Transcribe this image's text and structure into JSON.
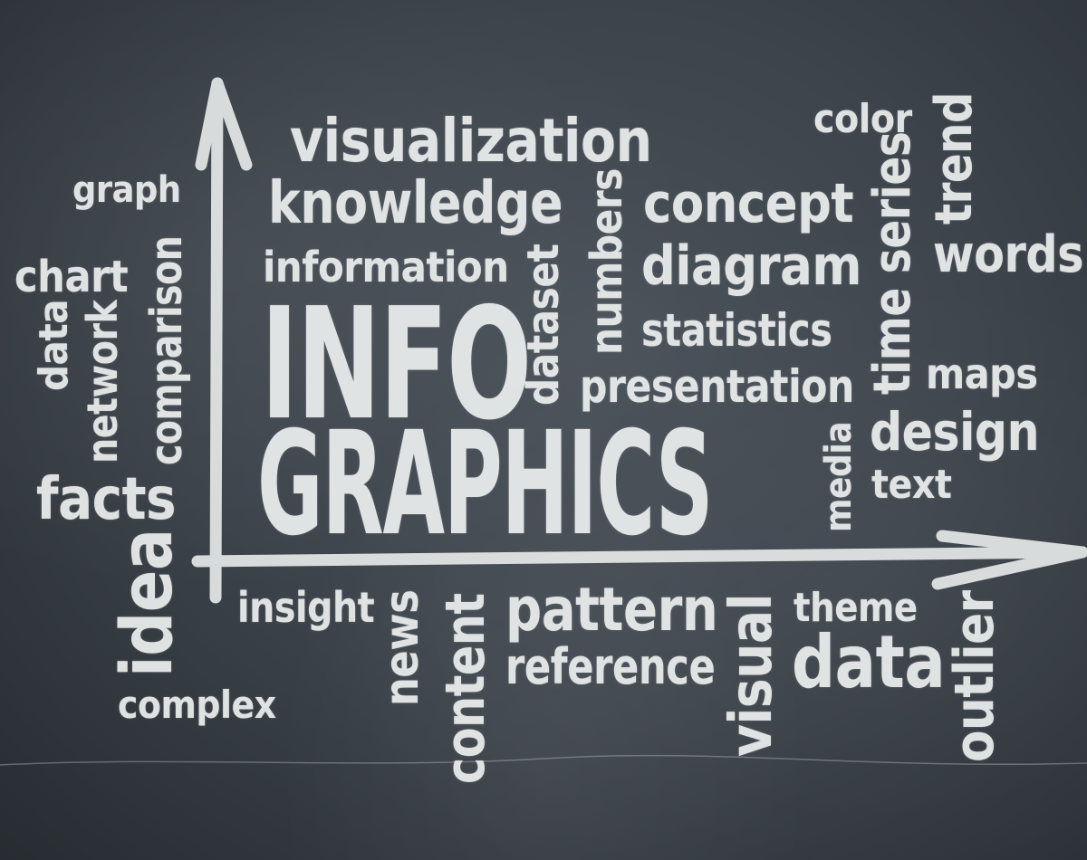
{
  "words": {
    "visualization": "visualization",
    "knowledge": "knowledge",
    "information": "information",
    "info": "INFO",
    "graphics": "GRAPHICS",
    "dataset": "dataset",
    "numbers": "numbers",
    "concept": "concept",
    "diagram": "diagram",
    "statistics": "statistics",
    "presentation": "presentation",
    "media": "media",
    "color": "color",
    "trend": "trend",
    "time_series": "time series",
    "words": "words",
    "maps": "maps",
    "design": "design",
    "text": "text",
    "graph": "graph",
    "chart": "chart",
    "comparison": "comparison",
    "network": "network",
    "data_left": "data",
    "facts": "facts",
    "idea": "idea",
    "complex": "complex",
    "insight": "insight",
    "news": "news",
    "content": "content",
    "pattern": "pattern",
    "reference": "reference",
    "visual": "visual",
    "theme": "theme",
    "data_bottom": "data",
    "outlier": "outlier"
  },
  "colors": {
    "chalk": "#ecefef",
    "board": "#3b4248"
  }
}
